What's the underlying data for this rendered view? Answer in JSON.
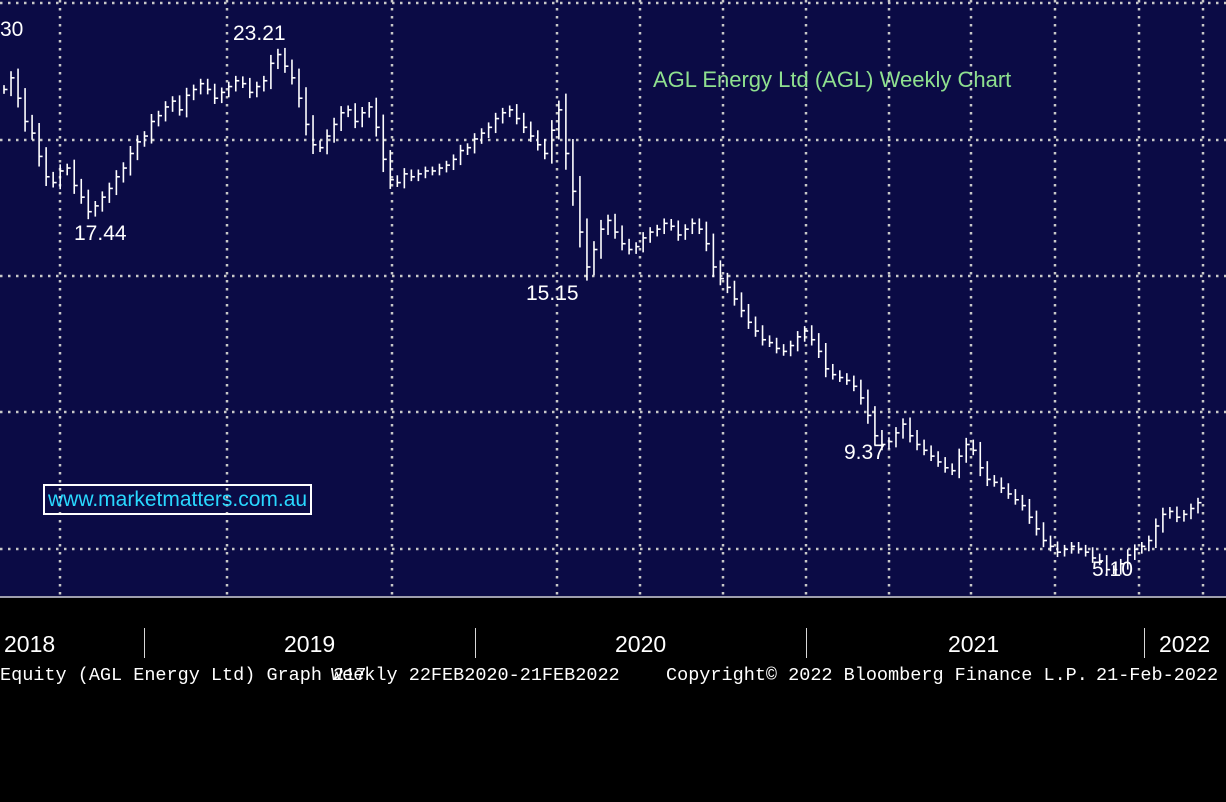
{
  "chart_data": {
    "type": "ohlc",
    "title": "AGL Energy Ltd (AGL) Weekly Chart",
    "frequency": "Weekly",
    "x_tick_labels": [
      "2018",
      "2019",
      "2020",
      "2021",
      "2022"
    ],
    "ylim": [
      4.5,
      24.5
    ],
    "grid": true,
    "annotations": [
      {
        "label": "30",
        "value": 22.3
      },
      {
        "label": "23.21",
        "value": 23.21
      },
      {
        "label": "17.44",
        "value": 17.44
      },
      {
        "label": "15.15",
        "value": 15.15
      },
      {
        "label": "9.37",
        "value": 9.37
      },
      {
        "label": "5.10",
        "value": 5.1
      }
    ],
    "closes": [
      21.7,
      22.1,
      21.4,
      20.6,
      20.2,
      19.4,
      18.7,
      18.5,
      18.9,
      19.0,
      18.4,
      18.0,
      17.5,
      17.7,
      18.0,
      18.3,
      18.7,
      19.0,
      19.5,
      19.9,
      20.1,
      20.6,
      20.8,
      21.1,
      21.3,
      21.0,
      21.5,
      21.7,
      21.9,
      21.7,
      21.4,
      21.6,
      21.8,
      22.0,
      21.9,
      21.6,
      21.8,
      22.0,
      22.6,
      22.9,
      22.5,
      22.1,
      21.4,
      20.5,
      19.8,
      19.7,
      20.1,
      20.5,
      20.9,
      21.0,
      20.6,
      20.9,
      21.1,
      20.4,
      19.3,
      18.6,
      18.5,
      18.8,
      18.7,
      18.8,
      18.9,
      18.9,
      19.0,
      19.1,
      19.3,
      19.6,
      19.7,
      20.0,
      20.2,
      20.4,
      20.7,
      20.9,
      21.0,
      20.7,
      20.4,
      20.1,
      19.8,
      19.5,
      20.3,
      21.0,
      19.5,
      18.2,
      16.8,
      15.6,
      16.2,
      16.9,
      17.2,
      16.8,
      16.4,
      16.2,
      16.3,
      16.6,
      16.8,
      16.9,
      17.1,
      17.0,
      16.7,
      16.9,
      17.1,
      16.9,
      16.4,
      15.6,
      15.2,
      14.9,
      14.5,
      14.1,
      13.7,
      13.4,
      13.1,
      13.0,
      12.8,
      12.7,
      12.9,
      13.2,
      13.4,
      13.1,
      12.7,
      12.1,
      11.9,
      11.8,
      11.7,
      11.5,
      11.1,
      10.5,
      9.8,
      9.5,
      9.6,
      9.9,
      10.2,
      9.8,
      9.5,
      9.3,
      9.1,
      8.9,
      8.7,
      8.6,
      9.1,
      9.5,
      9.3,
      8.7,
      8.3,
      8.2,
      8.0,
      7.8,
      7.6,
      7.4,
      7.0,
      6.6,
      6.2,
      6.0,
      5.8,
      5.9,
      6.0,
      5.9,
      5.8,
      5.6,
      5.5,
      5.2,
      5.2,
      5.4,
      5.7,
      5.9,
      6.0,
      6.2,
      6.7,
      7.1,
      7.2,
      7.0,
      7.1,
      7.3,
      7.5
    ]
  },
  "footer": {
    "left": "Equity (AGL Energy Ltd) Graph 217",
    "range": "Weekly 22FEB2020-21FEB2022",
    "copyright": "Copyright© 2022 Bloomberg Finance L.P.",
    "date": "21-Feb-2022"
  },
  "watermark": "www.marketmatters.com.au",
  "colors": {
    "background": "#0b0b45",
    "price_bars": "#ffffff",
    "gridlines": "#c8c8c8",
    "title": "#8fe08f",
    "watermark": "#29d8ff"
  }
}
